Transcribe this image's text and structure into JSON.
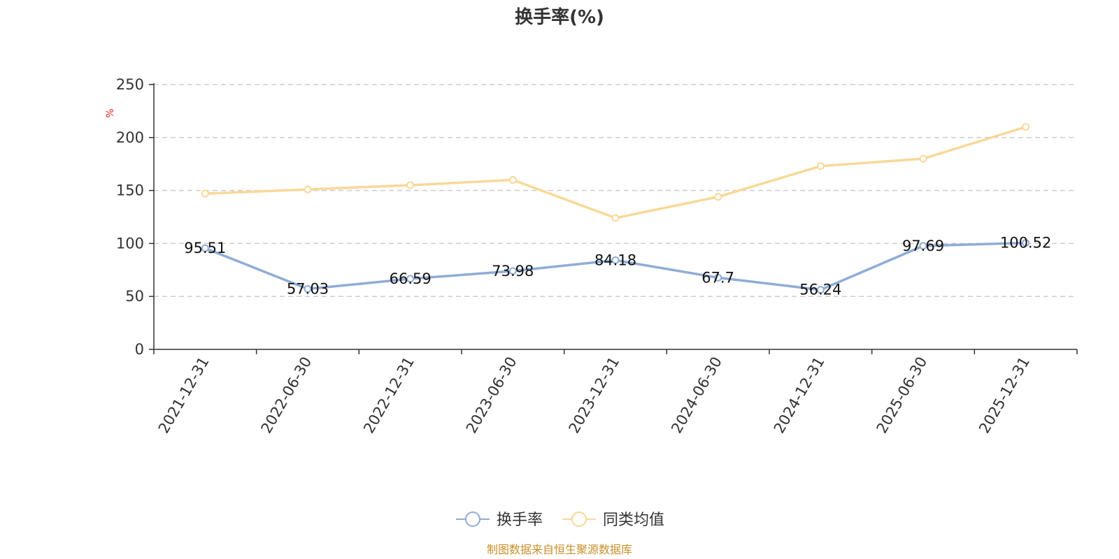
{
  "chart_data": {
    "type": "line",
    "title": "换手率(%)",
    "ylabel": "%",
    "ylim": [
      0,
      250
    ],
    "yticks": [
      0,
      50,
      100,
      150,
      200,
      250
    ],
    "categories": [
      "2021-12-31",
      "2022-06-30",
      "2022-12-31",
      "2023-06-30",
      "2023-12-31",
      "2024-06-30",
      "2024-12-31",
      "2025-06-30",
      "2025-12-31"
    ],
    "series": [
      {
        "name": "换手率",
        "color": "#8eacd7",
        "values": [
          95.51,
          57.03,
          66.59,
          73.98,
          84.18,
          67.7,
          56.24,
          97.69,
          100.52
        ],
        "labels": [
          "95.51",
          "57.03",
          "66.59",
          "73.98",
          "84.18",
          "67.7",
          "56.24",
          "97.69",
          "100.52"
        ]
      },
      {
        "name": "同类均值",
        "color": "#f9d898",
        "values": [
          147,
          151,
          155,
          160,
          124,
          144,
          173,
          180,
          210
        ]
      }
    ],
    "grid": true,
    "legend_position": "bottom-center"
  },
  "source_note": "制图数据来自恒生聚源数据库"
}
